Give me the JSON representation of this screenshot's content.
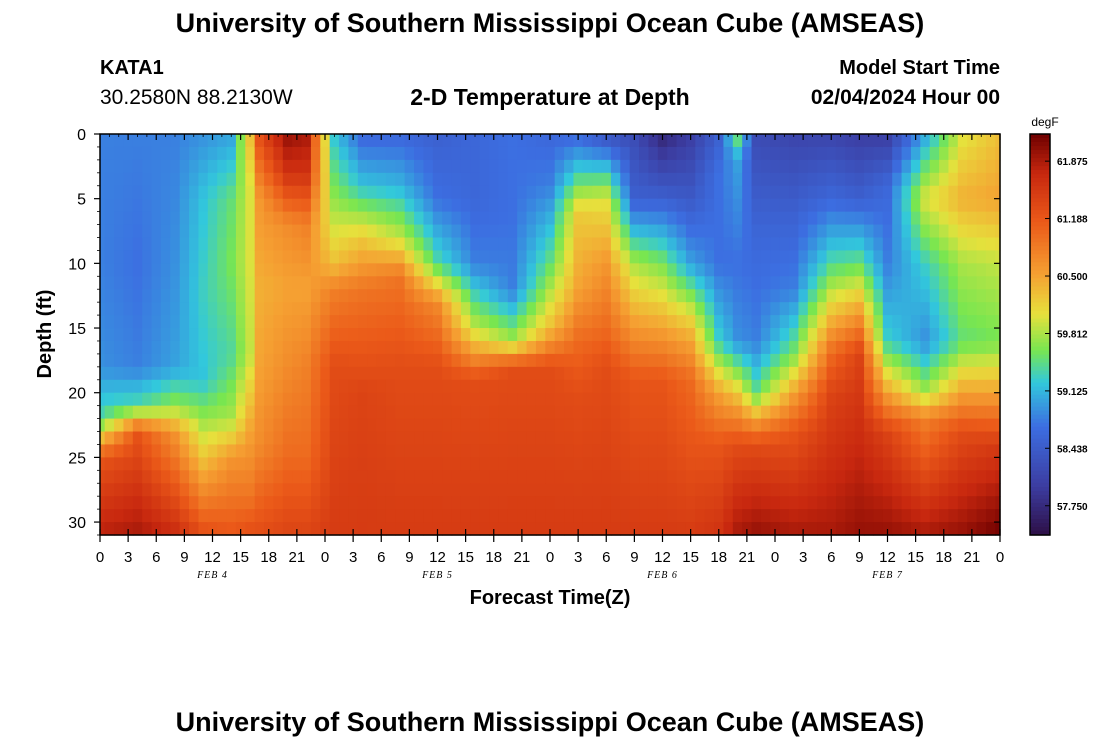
{
  "header": {
    "title": "University of Southern Mississippi Ocean Cube (AMSEAS)",
    "station": "KATA1",
    "coords": "30.2580N  88.2130W",
    "plot_title": "2-D Temperature at Depth",
    "model_start_label": "Model Start Time",
    "model_start_value": "02/04/2024 Hour 00"
  },
  "footer": {
    "title": "University of Southern Mississippi Ocean Cube (AMSEAS)"
  },
  "chart_data": {
    "type": "heatmap",
    "title": "2-D Temperature at Depth",
    "xlabel": "Forecast Time(Z)",
    "ylabel": "Depth (ft)",
    "colorbar_unit": "degF",
    "xlim_hours": [
      0,
      96
    ],
    "ylim": [
      0,
      31
    ],
    "x_ticks": [
      "0",
      "3",
      "6",
      "9",
      "12",
      "15",
      "18",
      "21",
      "0",
      "3",
      "6",
      "9",
      "12",
      "15",
      "18",
      "21",
      "0",
      "3",
      "6",
      "9",
      "12",
      "15",
      "18",
      "21",
      "0",
      "3",
      "6",
      "9",
      "12",
      "15",
      "18",
      "21",
      "0"
    ],
    "date_labels": [
      {
        "label": "FEB 4",
        "hour": 12
      },
      {
        "label": "FEB 5",
        "hour": 36
      },
      {
        "label": "FEB 6",
        "hour": 60
      },
      {
        "label": "FEB 7",
        "hour": 84
      }
    ],
    "y_ticks": [
      0,
      5,
      10,
      15,
      20,
      25,
      30
    ],
    "color_range": [
      57.4,
      62.2
    ],
    "colorbar_labels": [
      "61.875",
      "61.188",
      "60.500",
      "59.812",
      "59.125",
      "58.438",
      "57.750"
    ],
    "colorbar_values": [
      61.875,
      61.188,
      60.5,
      59.812,
      59.125,
      58.438,
      57.75
    ],
    "temperature_profiles": [
      {
        "hour": 0,
        "depth": [
          0,
          10,
          18,
          22,
          25,
          31
        ],
        "temp": [
          58.8,
          58.8,
          58.9,
          59.4,
          61.2,
          61.8
        ]
      },
      {
        "hour": 4,
        "depth": [
          0,
          10,
          18,
          21,
          23,
          31
        ],
        "temp": [
          58.8,
          58.7,
          58.8,
          59.4,
          61.2,
          61.9
        ]
      },
      {
        "hour": 8,
        "depth": [
          0,
          10,
          18,
          21,
          23,
          31
        ],
        "temp": [
          58.8,
          58.9,
          59.0,
          59.7,
          60.6,
          61.7
        ]
      },
      {
        "hour": 11,
        "depth": [
          0,
          5,
          12,
          19,
          23,
          31
        ],
        "temp": [
          58.9,
          59.2,
          59.3,
          59.2,
          59.9,
          61.3
        ]
      },
      {
        "hour": 14,
        "depth": [
          0,
          5,
          10,
          17,
          22,
          25,
          31
        ],
        "temp": [
          59.0,
          59.5,
          59.6,
          59.4,
          59.8,
          60.6,
          61.2
        ]
      },
      {
        "hour": 16,
        "depth": [
          0,
          4,
          10,
          17,
          23,
          28,
          31
        ],
        "temp": [
          60.3,
          60.0,
          60.0,
          59.9,
          60.5,
          60.9,
          61.3
        ]
      },
      {
        "hour": 17,
        "depth": [
          0,
          5,
          12,
          18,
          24,
          31
        ],
        "temp": [
          61.3,
          60.6,
          60.4,
          60.5,
          60.7,
          61.3
        ]
      },
      {
        "hour": 20,
        "depth": [
          0,
          3,
          7,
          12,
          18,
          25,
          31
        ],
        "temp": [
          62.0,
          61.6,
          60.7,
          60.5,
          60.7,
          61.0,
          61.4
        ]
      },
      {
        "hour": 22,
        "depth": [
          0,
          3,
          7,
          12,
          18,
          25,
          31
        ],
        "temp": [
          61.9,
          61.6,
          60.8,
          60.5,
          60.8,
          61.0,
          61.4
        ]
      },
      {
        "hour": 25,
        "depth": [
          0,
          5,
          10,
          12,
          18,
          31
        ],
        "temp": [
          59.2,
          59.7,
          60.3,
          60.8,
          61.3,
          61.5
        ]
      },
      {
        "hour": 28,
        "depth": [
          0,
          4,
          8,
          12,
          20,
          31
        ],
        "temp": [
          58.6,
          59.2,
          60.2,
          60.9,
          61.4,
          61.5
        ]
      },
      {
        "hour": 32,
        "depth": [
          0,
          4,
          8,
          11,
          18,
          31
        ],
        "temp": [
          58.6,
          59.1,
          59.9,
          60.9,
          61.3,
          61.5
        ]
      },
      {
        "hour": 36,
        "depth": [
          0,
          5,
          10,
          13,
          18,
          31
        ],
        "temp": [
          58.5,
          58.7,
          59.4,
          60.7,
          61.3,
          61.5
        ]
      },
      {
        "hour": 40,
        "depth": [
          0,
          5,
          10,
          15,
          19,
          31
        ],
        "temp": [
          58.6,
          58.6,
          58.8,
          59.9,
          61.3,
          61.5
        ]
      },
      {
        "hour": 44,
        "depth": [
          0,
          6,
          12,
          16,
          18,
          31
        ],
        "temp": [
          58.7,
          58.7,
          58.8,
          59.8,
          61.3,
          61.5
        ]
      },
      {
        "hour": 48,
        "depth": [
          0,
          4,
          10,
          15,
          18,
          31
        ],
        "temp": [
          58.6,
          58.8,
          59.5,
          60.3,
          61.3,
          61.5
        ]
      },
      {
        "hour": 51,
        "depth": [
          0,
          3,
          6,
          12,
          16,
          20,
          31
        ],
        "temp": [
          58.6,
          59.3,
          60.2,
          60.5,
          61.0,
          61.3,
          61.5
        ]
      },
      {
        "hour": 54,
        "depth": [
          0,
          3,
          5,
          10,
          15,
          18,
          31
        ],
        "temp": [
          58.3,
          59.3,
          60.0,
          60.6,
          61.0,
          61.3,
          61.5
        ]
      },
      {
        "hour": 57,
        "depth": [
          0,
          5,
          10,
          15,
          19,
          31
        ],
        "temp": [
          58.2,
          58.5,
          59.8,
          60.6,
          61.2,
          61.5
        ]
      },
      {
        "hour": 60,
        "depth": [
          0,
          5,
          10,
          15,
          19,
          31
        ],
        "temp": [
          57.7,
          58.5,
          59.6,
          60.5,
          61.2,
          61.5
        ]
      },
      {
        "hour": 63,
        "depth": [
          0,
          5,
          10,
          15,
          19,
          31
        ],
        "temp": [
          58.0,
          58.4,
          59.0,
          60.3,
          61.0,
          61.5
        ]
      },
      {
        "hour": 66,
        "depth": [
          0,
          3,
          10,
          16,
          20,
          24,
          31
        ],
        "temp": [
          58.5,
          58.7,
          58.7,
          59.3,
          60.5,
          61.2,
          61.6
        ]
      },
      {
        "hour": 68,
        "depth": [
          0,
          2,
          10,
          16,
          21,
          24,
          31
        ],
        "temp": [
          59.6,
          59.0,
          58.7,
          58.9,
          60.5,
          61.3,
          61.9
        ]
      },
      {
        "hour": 70,
        "depth": [
          0,
          8,
          16,
          20,
          22,
          24,
          31
        ],
        "temp": [
          58.2,
          58.6,
          58.8,
          59.5,
          60.5,
          61.3,
          62.0
        ]
      },
      {
        "hour": 74,
        "depth": [
          0,
          6,
          12,
          17,
          20,
          23,
          31
        ],
        "temp": [
          58.1,
          58.5,
          58.8,
          59.6,
          60.5,
          61.2,
          61.9
        ]
      },
      {
        "hour": 78,
        "depth": [
          0,
          5,
          10,
          14,
          17,
          20,
          31
        ],
        "temp": [
          58.1,
          58.6,
          59.4,
          60.3,
          61.0,
          61.4,
          61.9
        ]
      },
      {
        "hour": 81,
        "depth": [
          0,
          5,
          10,
          14,
          17,
          31
        ],
        "temp": [
          58.0,
          58.5,
          59.5,
          60.6,
          61.4,
          62.0
        ]
      },
      {
        "hour": 84,
        "depth": [
          0,
          4,
          10,
          16,
          20,
          23,
          31
        ],
        "temp": [
          58.0,
          58.6,
          58.8,
          59.3,
          60.5,
          61.4,
          62.0
        ]
      },
      {
        "hour": 88,
        "depth": [
          0,
          5,
          10,
          16,
          20,
          22,
          31
        ],
        "temp": [
          59.0,
          60.0,
          59.3,
          58.9,
          59.8,
          60.8,
          61.9
        ]
      },
      {
        "hour": 92,
        "depth": [
          0,
          5,
          10,
          16,
          20,
          23,
          31
        ],
        "temp": [
          60.0,
          60.4,
          59.8,
          59.5,
          60.5,
          61.3,
          62.0
        ]
      },
      {
        "hour": 96,
        "depth": [
          0,
          5,
          10,
          16,
          20,
          24,
          31
        ],
        "temp": [
          60.3,
          60.5,
          59.9,
          59.6,
          60.5,
          61.5,
          62.2
        ]
      }
    ]
  }
}
